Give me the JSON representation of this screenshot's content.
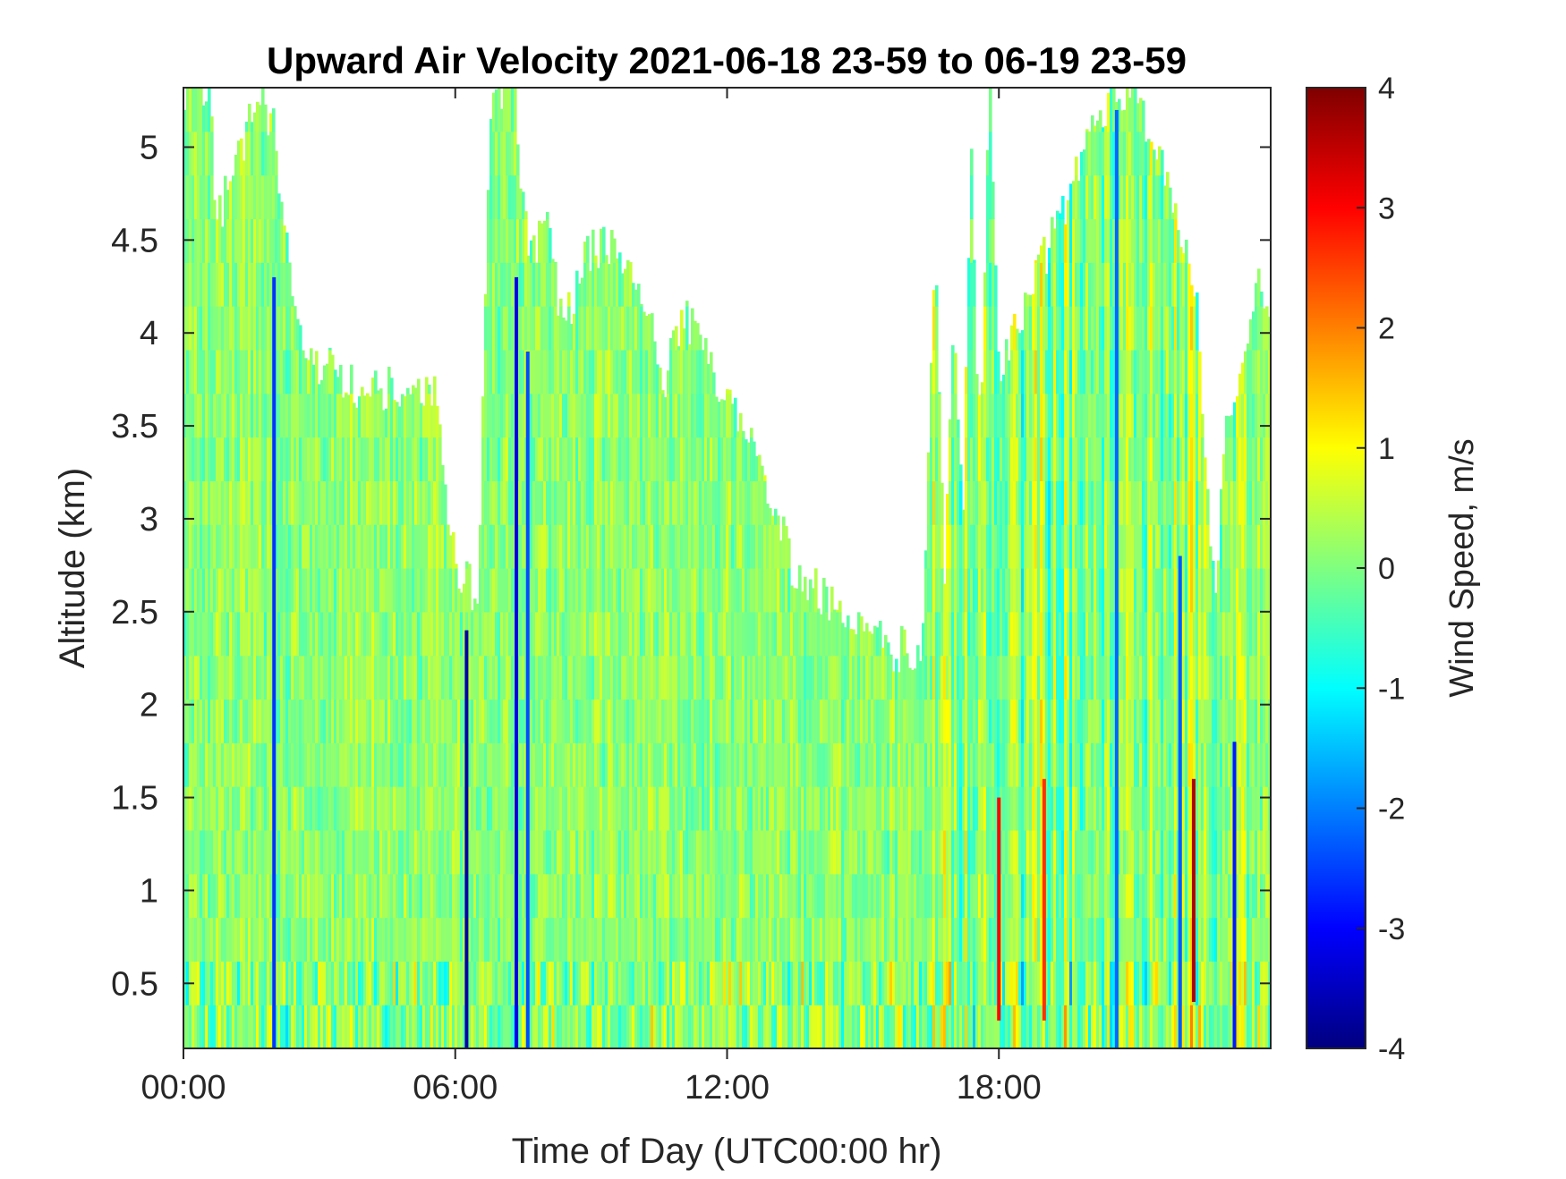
{
  "chart_data": {
    "type": "heatmap",
    "title": "Upward Air Velocity 2021-06-18 23-59 to 06-19 23-59",
    "xlabel": "Time of Day (UTC00:00 hr)",
    "ylabel": "Altitude (km)",
    "colorbar_label": "Wind Speed, m/s",
    "x_unit": "hours",
    "xlim": [
      0,
      24
    ],
    "ylim": [
      0.15,
      5.32
    ],
    "clim": [
      -4,
      4
    ],
    "colormap": "jet",
    "grid": false,
    "x_ticks": [
      {
        "value": 0,
        "label": "00:00"
      },
      {
        "value": 6,
        "label": "06:00"
      },
      {
        "value": 12,
        "label": "12:00"
      },
      {
        "value": 18,
        "label": "18:00"
      }
    ],
    "y_ticks": [
      {
        "value": 0.5,
        "label": "0.5"
      },
      {
        "value": 1,
        "label": "1"
      },
      {
        "value": 1.5,
        "label": "1.5"
      },
      {
        "value": 2,
        "label": "2"
      },
      {
        "value": 2.5,
        "label": "2.5"
      },
      {
        "value": 3,
        "label": "3"
      },
      {
        "value": 3.5,
        "label": "3.5"
      },
      {
        "value": 4,
        "label": "4"
      },
      {
        "value": 4.5,
        "label": "4.5"
      },
      {
        "value": 5,
        "label": "5"
      }
    ],
    "colorbar_ticks": [
      {
        "value": 4,
        "label": "4"
      },
      {
        "value": 3,
        "label": "3"
      },
      {
        "value": 2,
        "label": "2"
      },
      {
        "value": 1,
        "label": "1"
      },
      {
        "value": 0,
        "label": "0"
      },
      {
        "value": -1,
        "label": "-1"
      },
      {
        "value": -2,
        "label": "-2"
      },
      {
        "value": -3,
        "label": "-3"
      },
      {
        "value": -4,
        "label": "-4"
      }
    ],
    "data_top_km": [
      {
        "t": 0.0,
        "h": 5.32
      },
      {
        "t": 0.6,
        "h": 5.32
      },
      {
        "t": 0.7,
        "h": 4.6
      },
      {
        "t": 1.2,
        "h": 4.9
      },
      {
        "t": 1.6,
        "h": 5.32
      },
      {
        "t": 2.0,
        "h": 5.1
      },
      {
        "t": 2.4,
        "h": 4.2
      },
      {
        "t": 2.8,
        "h": 3.8
      },
      {
        "t": 3.3,
        "h": 3.8
      },
      {
        "t": 3.8,
        "h": 3.7
      },
      {
        "t": 4.3,
        "h": 3.7
      },
      {
        "t": 5.0,
        "h": 3.7
      },
      {
        "t": 5.6,
        "h": 3.7
      },
      {
        "t": 5.8,
        "h": 3.1
      },
      {
        "t": 6.1,
        "h": 2.7
      },
      {
        "t": 6.5,
        "h": 2.6
      },
      {
        "t": 6.8,
        "h": 5.32
      },
      {
        "t": 7.3,
        "h": 5.32
      },
      {
        "t": 7.6,
        "h": 4.4
      },
      {
        "t": 8.0,
        "h": 4.6
      },
      {
        "t": 8.4,
        "h": 4.0
      },
      {
        "t": 8.8,
        "h": 4.4
      },
      {
        "t": 9.3,
        "h": 4.5
      },
      {
        "t": 9.6,
        "h": 4.4
      },
      {
        "t": 10.2,
        "h": 4.2
      },
      {
        "t": 10.6,
        "h": 3.7
      },
      {
        "t": 11.0,
        "h": 4.1
      },
      {
        "t": 11.5,
        "h": 3.9
      },
      {
        "t": 12.0,
        "h": 3.6
      },
      {
        "t": 12.5,
        "h": 3.4
      },
      {
        "t": 13.0,
        "h": 3.1
      },
      {
        "t": 13.5,
        "h": 2.7
      },
      {
        "t": 14.0,
        "h": 2.6
      },
      {
        "t": 14.5,
        "h": 2.5
      },
      {
        "t": 15.0,
        "h": 2.4
      },
      {
        "t": 15.6,
        "h": 2.3
      },
      {
        "t": 16.3,
        "h": 2.3
      },
      {
        "t": 16.8,
        "h": 2.6
      },
      {
        "t": 17.2,
        "h": 3.0
      },
      {
        "t": 17.6,
        "h": 3.6
      },
      {
        "t": 18.0,
        "h": 3.8
      },
      {
        "t": 17.5,
        "h": 3.8
      },
      {
        "t": 17.0,
        "h": 4.2
      },
      {
        "t": 16.6,
        "h": 4.6
      },
      {
        "t": 17.4,
        "h": 5.1
      },
      {
        "t": 17.8,
        "h": 5.32
      },
      {
        "t": 20.5,
        "h": 5.32
      },
      {
        "t": 21.0,
        "h": 5.32
      },
      {
        "t": 21.7,
        "h": 4.8
      },
      {
        "t": 22.4,
        "h": 4.2
      },
      {
        "t": 22.5,
        "h": 3.5
      },
      {
        "t": 22.8,
        "h": 2.5
      },
      {
        "t": 23.0,
        "h": 3.6
      },
      {
        "t": 23.4,
        "h": 3.8
      },
      {
        "t": 23.7,
        "h": 4.3
      },
      {
        "t": 24.0,
        "h": 4.2
      }
    ],
    "strong_downdrafts_h": [
      {
        "t": 2.0,
        "v": -2.6,
        "top": 4.3
      },
      {
        "t": 6.25,
        "v": -3.7,
        "top": 2.4
      },
      {
        "t": 7.35,
        "v": -3.2,
        "top": 4.3
      },
      {
        "t": 7.6,
        "v": -2.4,
        "top": 3.9
      },
      {
        "t": 20.6,
        "v": -2.2,
        "top": 5.2
      },
      {
        "t": 22.0,
        "v": -2.3,
        "top": 2.8
      },
      {
        "t": 23.2,
        "v": -2.8,
        "top": 1.8
      }
    ],
    "strong_updrafts_h": [
      {
        "t": 18.0,
        "v": 3.0,
        "bottom": 0.3,
        "top": 1.5
      },
      {
        "t": 19.0,
        "v": 2.6,
        "bottom": 0.3,
        "top": 1.6
      },
      {
        "t": 22.3,
        "v": 3.6,
        "bottom": 0.4,
        "top": 1.6
      }
    ]
  }
}
